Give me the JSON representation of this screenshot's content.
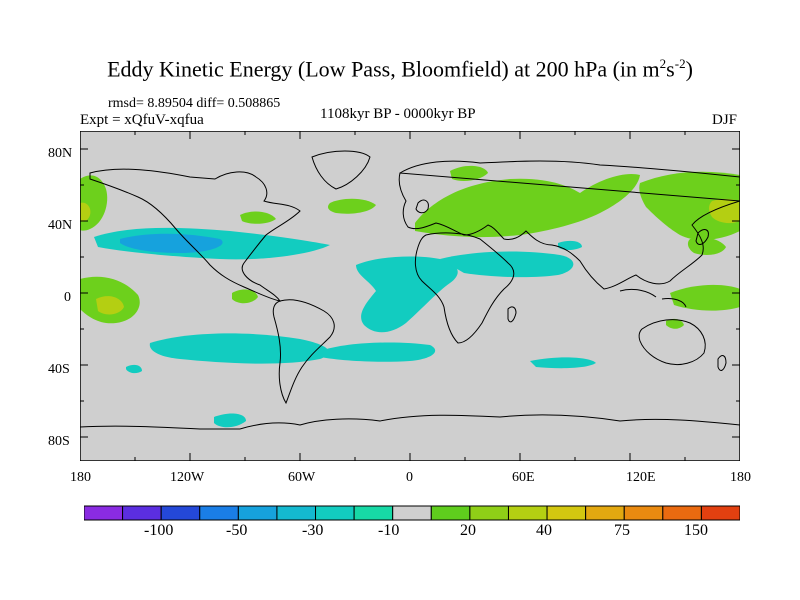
{
  "header": {
    "title_main": "Eddy Kinetic Energy (Low Pass, Bloomfield) at 200 hPa (in m",
    "title_sup1": "2",
    "title_mid": "s",
    "title_sup2": "-2",
    "title_end": ")",
    "stats": "rmsd= 8.89504 diff= 0.508865",
    "experiment": "Expt = xQfuV-xqfua",
    "period": "1108kyr BP - 0000kyr BP",
    "season": "DJF"
  },
  "map": {
    "lat_labels": [
      "80N",
      "40N",
      "0",
      "40S",
      "80S"
    ],
    "lon_labels": [
      "180",
      "120W",
      "60W",
      "0",
      "60E",
      "120E",
      "180"
    ]
  },
  "colorbar": {
    "colors": [
      "#8a2be2",
      "#5b2ee0",
      "#2448d8",
      "#1a7ee6",
      "#16a2dd",
      "#14b9d0",
      "#12ccc0",
      "#17d9a6",
      "#cfcfcf",
      "#5fcd1d",
      "#8fcf17",
      "#b4cf12",
      "#d3c710",
      "#e3a810",
      "#ea8a10",
      "#ea6a10",
      "#e24010"
    ],
    "labels": [
      "-100",
      "-50",
      "-30",
      "-10",
      "20",
      "40",
      "75",
      "150"
    ]
  }
}
